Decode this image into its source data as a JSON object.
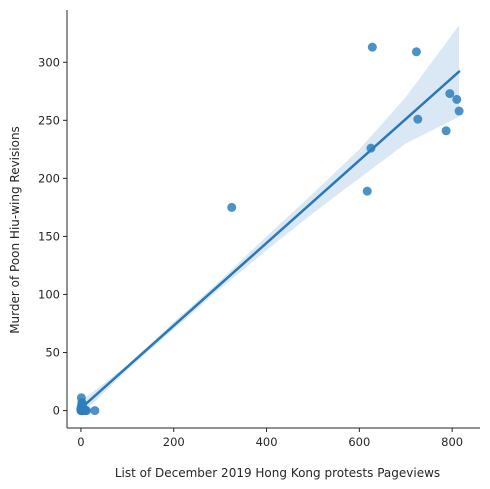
{
  "chart_data": {
    "type": "scatter",
    "title": "",
    "xlabel": "List of December 2019 Hong Kong protests Pageviews",
    "ylabel": "Murder of Poon Hiu-wing Revisions",
    "xlim": [
      -30,
      860
    ],
    "ylim": [
      -15,
      345
    ],
    "xticks": [
      0,
      200,
      400,
      600,
      800
    ],
    "yticks": [
      0,
      50,
      100,
      150,
      200,
      250,
      300
    ],
    "grid": false,
    "colors": {
      "point": "#2e7fbd",
      "line": "#2b78b8",
      "band": "#c6dbef"
    },
    "points": [
      {
        "x": 0,
        "y": 0
      },
      {
        "x": 1,
        "y": 0
      },
      {
        "x": 2,
        "y": 0
      },
      {
        "x": 0,
        "y": 1
      },
      {
        "x": 1,
        "y": 1
      },
      {
        "x": 2,
        "y": 2
      },
      {
        "x": 3,
        "y": 0
      },
      {
        "x": 4,
        "y": 0
      },
      {
        "x": 5,
        "y": 1
      },
      {
        "x": 0,
        "y": 2
      },
      {
        "x": 6,
        "y": 0
      },
      {
        "x": 2,
        "y": 3
      },
      {
        "x": 1,
        "y": 4
      },
      {
        "x": 3,
        "y": 5
      },
      {
        "x": 8,
        "y": 1
      },
      {
        "x": 10,
        "y": 0
      },
      {
        "x": 12,
        "y": 0
      },
      {
        "x": 2,
        "y": 7
      },
      {
        "x": 1,
        "y": 11
      },
      {
        "x": 3,
        "y": 6
      },
      {
        "x": 30,
        "y": 0
      },
      {
        "x": 325,
        "y": 175
      },
      {
        "x": 617,
        "y": 189
      },
      {
        "x": 625,
        "y": 226
      },
      {
        "x": 628,
        "y": 313
      },
      {
        "x": 723,
        "y": 309
      },
      {
        "x": 726,
        "y": 251
      },
      {
        "x": 787,
        "y": 241
      },
      {
        "x": 795,
        "y": 273
      },
      {
        "x": 810,
        "y": 268
      },
      {
        "x": 815,
        "y": 258
      }
    ],
    "regression": {
      "x_start": 0,
      "y_start": 2,
      "x_end": 815,
      "y_end": 292,
      "ci_x": [
        0,
        100,
        200,
        300,
        400,
        500,
        600,
        700,
        815
      ],
      "ci_lower": [
        -4,
        35,
        70,
        105,
        138,
        170,
        200,
        230,
        253
      ],
      "ci_upper": [
        8,
        39,
        76,
        112,
        150,
        187,
        225,
        270,
        332
      ]
    }
  }
}
